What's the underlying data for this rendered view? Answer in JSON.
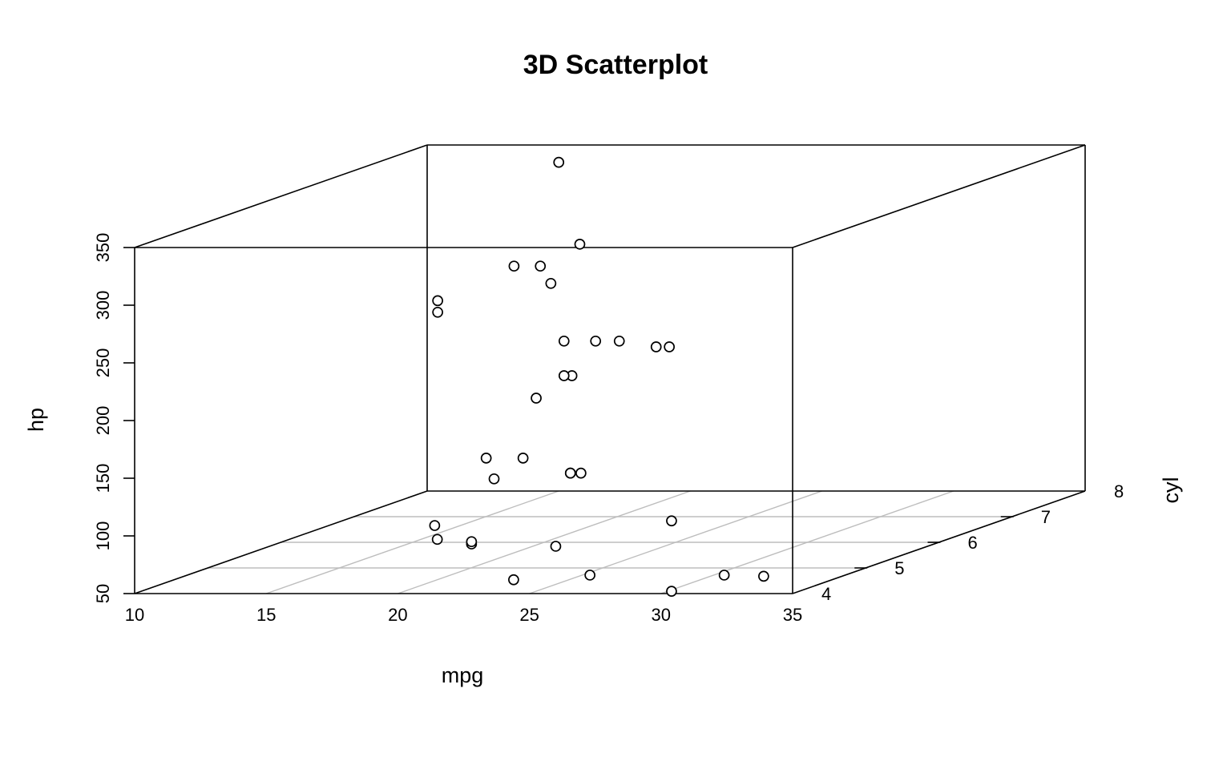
{
  "chart_data": {
    "type": "scatter",
    "projection": "3d",
    "title": "3D Scatterplot",
    "xlabel": "mpg",
    "ylabel": "cyl",
    "zlabel": "hp",
    "xlim": [
      10,
      35
    ],
    "ylim": [
      4,
      8
    ],
    "zlim": [
      50,
      350
    ],
    "x_ticks": [
      "10",
      "15",
      "20",
      "25",
      "30",
      "35"
    ],
    "y_ticks": [
      "4",
      "5",
      "6",
      "7",
      "8"
    ],
    "z_ticks": [
      "50",
      "100",
      "150",
      "200",
      "250",
      "300",
      "350"
    ],
    "grid": true,
    "grid_plane": "floor",
    "point_color": "#000000",
    "grid_color": "#bdbdbd",
    "points": [
      {
        "x": 21.0,
        "y": 6,
        "z": 110
      },
      {
        "x": 21.0,
        "y": 6,
        "z": 110
      },
      {
        "x": 22.8,
        "y": 4,
        "z": 93
      },
      {
        "x": 21.4,
        "y": 6,
        "z": 110
      },
      {
        "x": 18.7,
        "y": 8,
        "z": 175
      },
      {
        "x": 18.1,
        "y": 6,
        "z": 105
      },
      {
        "x": 14.3,
        "y": 8,
        "z": 245
      },
      {
        "x": 24.4,
        "y": 4,
        "z": 62
      },
      {
        "x": 22.8,
        "y": 4,
        "z": 95
      },
      {
        "x": 19.2,
        "y": 6,
        "z": 123
      },
      {
        "x": 17.8,
        "y": 6,
        "z": 123
      },
      {
        "x": 16.4,
        "y": 8,
        "z": 180
      },
      {
        "x": 17.3,
        "y": 8,
        "z": 180
      },
      {
        "x": 15.2,
        "y": 8,
        "z": 180
      },
      {
        "x": 10.4,
        "y": 8,
        "z": 205
      },
      {
        "x": 10.4,
        "y": 8,
        "z": 215
      },
      {
        "x": 14.7,
        "y": 8,
        "z": 230
      },
      {
        "x": 32.4,
        "y": 4,
        "z": 66
      },
      {
        "x": 30.4,
        "y": 4,
        "z": 52
      },
      {
        "x": 33.9,
        "y": 4,
        "z": 65
      },
      {
        "x": 21.5,
        "y": 4,
        "z": 97
      },
      {
        "x": 15.5,
        "y": 8,
        "z": 150
      },
      {
        "x": 15.2,
        "y": 8,
        "z": 150
      },
      {
        "x": 13.3,
        "y": 8,
        "z": 245
      },
      {
        "x": 19.2,
        "y": 8,
        "z": 175
      },
      {
        "x": 27.3,
        "y": 4,
        "z": 66
      },
      {
        "x": 26.0,
        "y": 4,
        "z": 91
      },
      {
        "x": 30.4,
        "y": 4,
        "z": 113
      },
      {
        "x": 15.8,
        "y": 8,
        "z": 264
      },
      {
        "x": 19.7,
        "y": 6,
        "z": 175
      },
      {
        "x": 15.0,
        "y": 8,
        "z": 335
      },
      {
        "x": 21.4,
        "y": 4,
        "z": 109
      }
    ]
  }
}
